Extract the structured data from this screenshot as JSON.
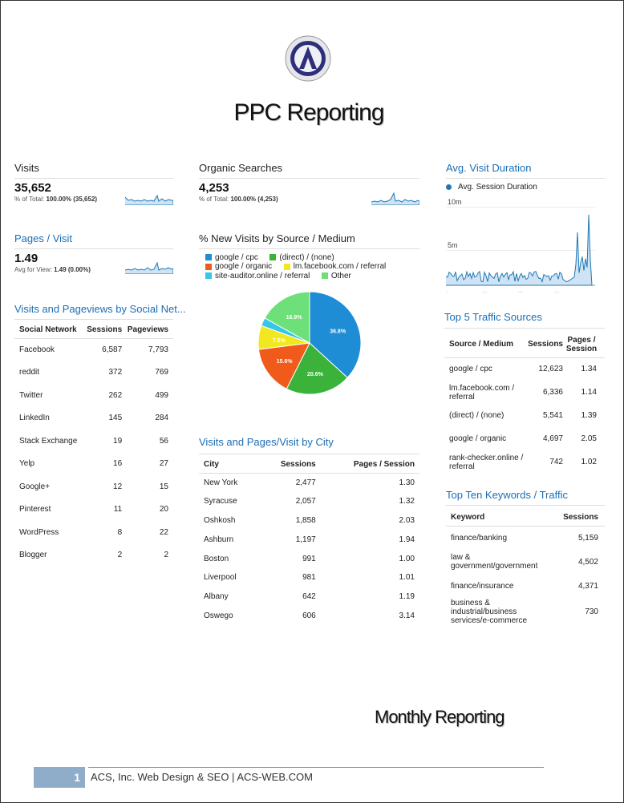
{
  "title": "PPC Reporting",
  "colors": {
    "accent": "#1a6db5",
    "spark": "#1f78b4"
  },
  "visits": {
    "title": "Visits",
    "value": "35,652",
    "note_prefix": "% of Total:",
    "note_value": "100.00% (35,652)"
  },
  "organic": {
    "title": "Organic Searches",
    "value": "4,253",
    "note_prefix": "% of Total:",
    "note_value": "100.00% (4,253)"
  },
  "pages_visit": {
    "title": "Pages / Visit",
    "value": "1.49",
    "note_prefix": "Avg for View:",
    "note_value": "1.49 (0.00%)"
  },
  "avg_duration": {
    "title": "Avg. Visit Duration",
    "legend": "Avg. Session Duration",
    "y_labels": [
      "10m",
      "5m"
    ]
  },
  "pie": {
    "title": "% New Visits by Source / Medium",
    "legend": [
      {
        "label": "google / cpc",
        "color": "#1f8dd6"
      },
      {
        "label": "(direct) / (none)",
        "color": "#3bb33b"
      },
      {
        "label": "google / organic",
        "color": "#f05a1a"
      },
      {
        "label": "lm.facebook.com / referral",
        "color": "#f2e81f"
      },
      {
        "label": "site-auditor.online / referral",
        "color": "#36c7e8"
      },
      {
        "label": "Other",
        "color": "#6ee07a"
      }
    ]
  },
  "chart_data": {
    "type": "pie",
    "categories": [
      "google / cpc",
      "(direct) / (none)",
      "google / organic",
      "lm.facebook.com / referral",
      "site-auditor.online / referral",
      "Other"
    ],
    "values": [
      36.8,
      20.6,
      15.6,
      7.5,
      2.6,
      16.9
    ],
    "labels": [
      "36.8%",
      "20.6%",
      "15.6%",
      "7.5%",
      "",
      "16.9%"
    ],
    "colors": [
      "#1f8dd6",
      "#3bb33b",
      "#f05a1a",
      "#f2e81f",
      "#36c7e8",
      "#6ee07a"
    ]
  },
  "social": {
    "title": "Visits and Pageviews by Social Net...",
    "headers": [
      "Social Network",
      "Sessions",
      "Pageviews"
    ],
    "rows": [
      [
        "Facebook",
        "6,587",
        "7,793"
      ],
      [
        "reddit",
        "372",
        "769"
      ],
      [
        "Twitter",
        "262",
        "499"
      ],
      [
        "LinkedIn",
        "145",
        "284"
      ],
      [
        "Stack Exchange",
        "19",
        "56"
      ],
      [
        "Yelp",
        "16",
        "27"
      ],
      [
        "Google+",
        "12",
        "15"
      ],
      [
        "Pinterest",
        "11",
        "20"
      ],
      [
        "WordPress",
        "8",
        "22"
      ],
      [
        "Blogger",
        "2",
        "2"
      ]
    ]
  },
  "city": {
    "title": "Visits and Pages/Visit by City",
    "headers": [
      "City",
      "Sessions",
      "Pages / Session"
    ],
    "rows": [
      [
        "New York",
        "2,477",
        "1.30"
      ],
      [
        "Syracuse",
        "2,057",
        "1.32"
      ],
      [
        "Oshkosh",
        "1,858",
        "2.03"
      ],
      [
        "Ashburn",
        "1,197",
        "1.94"
      ],
      [
        "Boston",
        "991",
        "1.00"
      ],
      [
        "Liverpool",
        "981",
        "1.01"
      ],
      [
        "Albany",
        "642",
        "1.19"
      ],
      [
        "Oswego",
        "606",
        "3.14"
      ]
    ]
  },
  "traffic": {
    "title": "Top 5 Traffic Sources",
    "headers": [
      "Source / Medium",
      "Sessions",
      "Pages / Session"
    ],
    "rows": [
      [
        "google / cpc",
        "12,623",
        "1.34"
      ],
      [
        "lm.facebook.com / referral",
        "6,336",
        "1.14"
      ],
      [
        "(direct) / (none)",
        "5,541",
        "1.39"
      ],
      [
        "google / organic",
        "4,697",
        "2.05"
      ],
      [
        "rank-checker.online / referral",
        "742",
        "1.02"
      ]
    ]
  },
  "keywords": {
    "title": "Top Ten Keywords / Traffic",
    "headers": [
      "Keyword",
      "Sessions"
    ],
    "rows": [
      [
        "finance/banking",
        "5,159"
      ],
      [
        "law & government/government",
        "4,502"
      ],
      [
        "finance/insurance",
        "4,371"
      ],
      [
        "business & industrial/business services/e-commerce",
        "730"
      ]
    ]
  },
  "footer": {
    "page": "1",
    "text": "ACS, Inc. Web Design & SEO | ACS-WEB.COM",
    "monthly": "Monthly Reporting"
  }
}
